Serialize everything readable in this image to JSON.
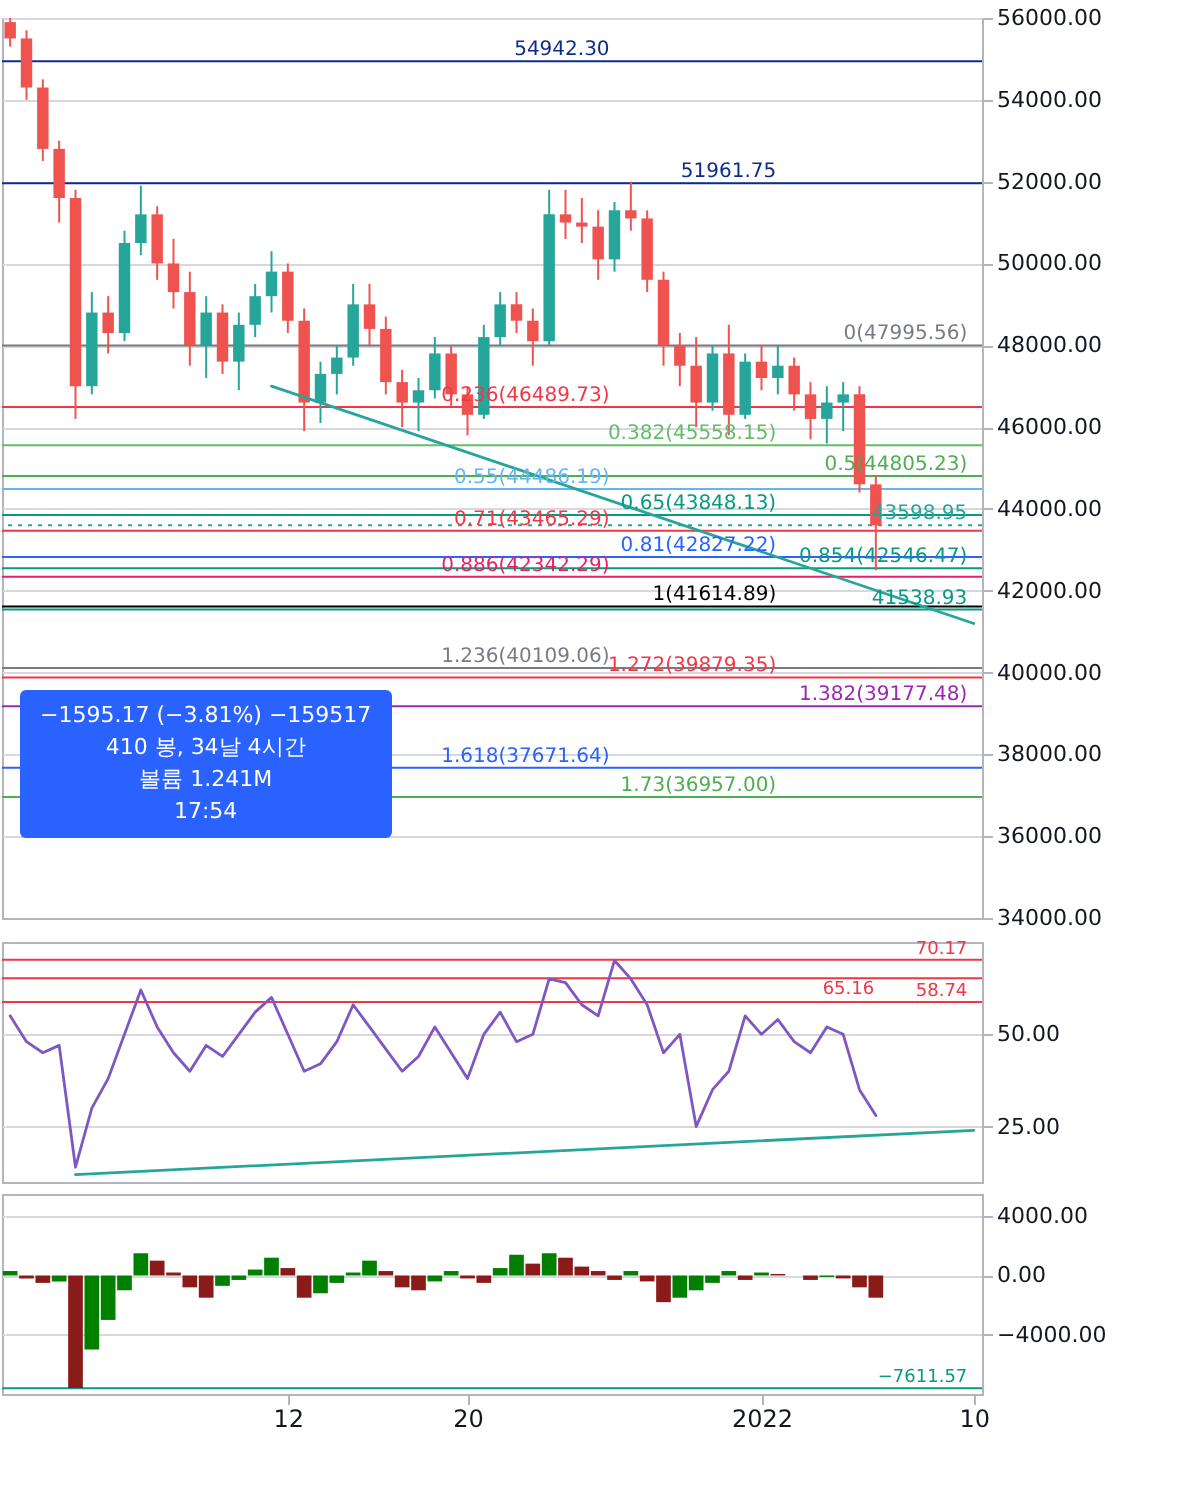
{
  "chart_data": [
    {
      "type": "candlestick",
      "grid": "y",
      "tick_labels": "y",
      "categories": [
        null,
        null,
        null,
        null,
        null,
        null,
        null,
        null,
        null,
        null,
        null,
        null,
        null,
        null,
        null,
        null,
        null,
        null,
        null,
        null,
        null,
        null,
        null,
        null,
        null,
        null,
        null,
        null,
        null,
        null,
        null,
        null,
        null,
        null,
        null,
        null,
        null,
        null,
        null,
        null,
        null,
        null,
        null,
        null,
        null,
        null,
        null,
        null,
        null,
        null,
        null,
        null,
        null,
        null,
        null,
        null,
        null,
        null,
        null,
        null
      ],
      "ohlc": [
        [
          55900,
          56000,
          55300,
          55500
        ],
        [
          55500,
          55700,
          54000,
          54300
        ],
        [
          54300,
          54500,
          52500,
          52800
        ],
        [
          52800,
          53000,
          51000,
          51600
        ],
        [
          51600,
          51800,
          46200,
          47000
        ],
        [
          47000,
          49300,
          46800,
          48800
        ],
        [
          48800,
          49200,
          47800,
          48300
        ],
        [
          48300,
          50800,
          48100,
          50500
        ],
        [
          50500,
          51900,
          50200,
          51200
        ],
        [
          51200,
          51400,
          49600,
          50000
        ],
        [
          50000,
          50600,
          48900,
          49300
        ],
        [
          49300,
          49800,
          47500,
          48000
        ],
        [
          48000,
          49200,
          47200,
          48800
        ],
        [
          48800,
          49000,
          47300,
          47600
        ],
        [
          47600,
          48800,
          46900,
          48500
        ],
        [
          48500,
          49500,
          48200,
          49200
        ],
        [
          49200,
          50300,
          48800,
          49800
        ],
        [
          49800,
          50000,
          48300,
          48600
        ],
        [
          48600,
          48900,
          45900,
          46600
        ],
        [
          46600,
          47600,
          46100,
          47300
        ],
        [
          47300,
          48000,
          46800,
          47700
        ],
        [
          47700,
          49500,
          47500,
          49000
        ],
        [
          49000,
          49500,
          48000,
          48400
        ],
        [
          48400,
          48700,
          46800,
          47100
        ],
        [
          47100,
          47400,
          46000,
          46600
        ],
        [
          46600,
          47200,
          45900,
          46900
        ],
        [
          46900,
          48200,
          46700,
          47800
        ],
        [
          47800,
          48000,
          46500,
          46800
        ],
        [
          46800,
          47000,
          45800,
          46300
        ],
        [
          46300,
          48500,
          46200,
          48200
        ],
        [
          48200,
          49300,
          48000,
          49000
        ],
        [
          49000,
          49300,
          48300,
          48600
        ],
        [
          48600,
          48900,
          47500,
          48100
        ],
        [
          48100,
          51800,
          48000,
          51200
        ],
        [
          51200,
          51800,
          50600,
          51000
        ],
        [
          51000,
          51600,
          50500,
          50900
        ],
        [
          50900,
          51300,
          49600,
          50100
        ],
        [
          50100,
          51500,
          49800,
          51300
        ],
        [
          51300,
          52000,
          50800,
          51100
        ],
        [
          51100,
          51300,
          49300,
          49600
        ],
        [
          49600,
          49800,
          47500,
          48000
        ],
        [
          48000,
          48300,
          47000,
          47500
        ],
        [
          47500,
          48200,
          46000,
          46600
        ],
        [
          46600,
          48000,
          46400,
          47800
        ],
        [
          47800,
          48500,
          45800,
          46300
        ],
        [
          46300,
          47800,
          46200,
          47600
        ],
        [
          47600,
          48000,
          46900,
          47200
        ],
        [
          47200,
          48000,
          46800,
          47500
        ],
        [
          47500,
          47700,
          46400,
          46800
        ],
        [
          46800,
          47100,
          45700,
          46200
        ],
        [
          46200,
          47000,
          45600,
          46600
        ],
        [
          46600,
          47100,
          45900,
          46800
        ],
        [
          46800,
          47000,
          44400,
          44600
        ],
        [
          44600,
          44800,
          42500,
          43598.95
        ],
        null,
        null,
        null,
        null,
        null,
        null
      ],
      "colors": [
        "#ef5350",
        "#ef5350",
        "#ef5350",
        "#ef5350",
        "#ef5350",
        "#26a69a",
        "#ef5350",
        "#26a69a",
        "#26a69a",
        "#ef5350",
        "#ef5350",
        "#ef5350",
        "#26a69a",
        "#ef5350",
        "#26a69a",
        "#26a69a",
        "#26a69a",
        "#ef5350",
        "#ef5350",
        "#26a69a",
        "#26a69a",
        "#26a69a",
        "#ef5350",
        "#ef5350",
        "#ef5350",
        "#26a69a",
        "#26a69a",
        "#ef5350",
        "#ef5350",
        "#26a69a",
        "#26a69a",
        "#ef5350",
        "#ef5350",
        "#26a69a",
        "#ef5350",
        "#ef5350",
        "#ef5350",
        "#26a69a",
        "#ef5350",
        "#ef5350",
        "#ef5350",
        "#ef5350",
        "#ef5350",
        "#26a69a",
        "#ef5350",
        "#26a69a",
        "#ef5350",
        "#26a69a",
        "#ef5350",
        "#ef5350",
        "#26a69a",
        "#26a69a",
        "#ef5350",
        "#ef5350",
        null,
        null,
        null,
        null,
        null,
        null
      ],
      "series": [
        {
          "type": "line",
          "color": "#26a69a",
          "values": [
            null,
            null,
            null,
            null,
            null,
            null,
            null,
            null,
            null,
            null,
            null,
            null,
            null,
            null,
            null,
            null,
            47000,
            null,
            null,
            null,
            null,
            null,
            null,
            null,
            null,
            null,
            null,
            null,
            null,
            null,
            null,
            null,
            null,
            null,
            null,
            null,
            null,
            null,
            null,
            null,
            null,
            null,
            null,
            null,
            null,
            null,
            null,
            null,
            null,
            null,
            null,
            null,
            null,
            null,
            null,
            null,
            null,
            null,
            null,
            41200
          ]
        }
      ],
      "ylim": [
        34000,
        56000
      ],
      "yticks": [
        {
          "value": 34000,
          "label": "34000.00"
        },
        {
          "value": 36000,
          "label": "36000.00"
        },
        {
          "value": 38000,
          "label": "38000.00"
        },
        {
          "value": 40000,
          "label": "40000.00"
        },
        {
          "value": 42000,
          "label": "42000.00"
        },
        {
          "value": 44000,
          "label": "44000.00"
        },
        {
          "value": 46000,
          "label": "46000.00"
        },
        {
          "value": 48000,
          "label": "48000.00"
        },
        {
          "value": 50000,
          "label": "50000.00"
        },
        {
          "value": 52000,
          "label": "52000.00"
        },
        {
          "value": 54000,
          "label": "54000.00"
        },
        {
          "value": 56000,
          "label": "56000.00"
        }
      ],
      "ref_lines": [
        {
          "axis": "y",
          "value": 54942.3,
          "label": "54942.30",
          "color": "#0d2c8c"
        },
        {
          "axis": "y",
          "value": 51961.75,
          "label": "51961.75",
          "color": "#0d2c8c"
        },
        {
          "axis": "y",
          "value": 47995.56,
          "label": "0(47995.56)",
          "color": "#787b86"
        },
        {
          "axis": "y",
          "value": 46489.73,
          "label": "0.236(46489.73)",
          "color": "#f23645"
        },
        {
          "axis": "y",
          "value": 45558.15,
          "label": "0.382(45558.15)",
          "color": "#66bb6a"
        },
        {
          "axis": "y",
          "value": 44805.23,
          "label": "0.5(44805.23)",
          "color": "#4caf50"
        },
        {
          "axis": "y",
          "value": 44486.19,
          "label": "0.55(44486.19)",
          "color": "#64b5f6"
        },
        {
          "axis": "y",
          "value": 43848.13,
          "label": "0.65(43848.13)",
          "color": "#089981"
        },
        {
          "axis": "y",
          "value": 43598.95,
          "label": "43598.95",
          "color": "#26a69a",
          "line_style": "dotted"
        },
        {
          "axis": "y",
          "value": 43465.29,
          "label": "0.71(43465.29)",
          "color": "#f23645"
        },
        {
          "axis": "y",
          "value": 42827.22,
          "label": "0.81(42827.22)",
          "color": "#2962ff"
        },
        {
          "axis": "y",
          "value": 42546.47,
          "label": "0.854(42546.47)",
          "color": "#089981"
        },
        {
          "axis": "y",
          "value": 42342.29,
          "label": "0.886(42342.29)",
          "color": "#e91e63"
        },
        {
          "axis": "y",
          "value": 41614.89,
          "label": "1(41614.89)",
          "color": "#000000"
        },
        {
          "axis": "y",
          "value": 41538.93,
          "label": "41538.93",
          "color": "#089981"
        },
        {
          "axis": "y",
          "value": 40109.06,
          "label": "1.236(40109.06)",
          "color": "#787b86"
        },
        {
          "axis": "y",
          "value": 39879.35,
          "label": "1.272(39879.35)",
          "color": "#f23645"
        },
        {
          "axis": "y",
          "value": 39177.48,
          "label": "1.382(39177.48)",
          "color": "#9c27b0"
        },
        {
          "axis": "y",
          "value": 37671.64,
          "label": "1.618(37671.64)",
          "color": "#2962ff"
        },
        {
          "axis": "y",
          "value": 36957.0,
          "label": "1.73(36957.00)",
          "color": "#4caf50"
        }
      ],
      "annotations": [
        "−1595.17 (−3.81%) −159517",
        "410 봉, 34날 4시간",
        "볼륨 1.241M",
        "17:54"
      ]
    },
    {
      "type": "line",
      "grid": "y",
      "tick_labels": "y",
      "categories": [
        null,
        null,
        null,
        null,
        null,
        null,
        null,
        null,
        null,
        null,
        null,
        null,
        null,
        null,
        null,
        null,
        null,
        null,
        null,
        null,
        null,
        null,
        null,
        null,
        null,
        null,
        null,
        null,
        null,
        null,
        null,
        null,
        null,
        null,
        null,
        null,
        null,
        null,
        null,
        null,
        null,
        null,
        null,
        null,
        null,
        null,
        null,
        null,
        null,
        null,
        null,
        null,
        null,
        null,
        null,
        null,
        null,
        null,
        null,
        null
      ],
      "series": [
        {
          "color": "#7e57c2",
          "values": [
            55,
            48,
            45,
            47,
            14,
            30,
            38,
            50,
            62,
            52,
            45,
            40,
            47,
            44,
            50,
            56,
            60,
            50,
            40,
            42,
            48,
            58,
            52,
            46,
            40,
            44,
            52,
            45,
            38,
            50,
            56,
            48,
            50,
            65,
            64,
            58,
            55,
            70,
            65,
            58,
            45,
            50,
            25,
            35,
            40,
            55,
            50,
            54,
            48,
            45,
            52,
            50,
            35,
            28,
            null,
            null,
            null,
            null,
            null,
            null
          ]
        },
        {
          "color": "#26a69a",
          "values": [
            null,
            null,
            null,
            null,
            12,
            null,
            null,
            null,
            null,
            null,
            null,
            null,
            null,
            null,
            null,
            null,
            null,
            null,
            null,
            null,
            null,
            null,
            null,
            null,
            null,
            null,
            null,
            null,
            null,
            null,
            null,
            null,
            null,
            null,
            null,
            null,
            null,
            null,
            null,
            null,
            null,
            null,
            null,
            null,
            null,
            null,
            null,
            null,
            null,
            null,
            null,
            null,
            null,
            null,
            null,
            null,
            null,
            null,
            null,
            24
          ]
        }
      ],
      "ylim": [
        10,
        75
      ],
      "yticks": [
        {
          "value": 25,
          "label": "25.00"
        },
        {
          "value": 50,
          "label": "50.00"
        }
      ],
      "ref_lines": [
        {
          "axis": "y",
          "value": 70.17,
          "label": "70.17",
          "color": "#f23645"
        },
        {
          "axis": "y",
          "value": 65.16,
          "label": "65.16",
          "color": "#f23645"
        },
        {
          "axis": "y",
          "value": 58.74,
          "label": "58.74",
          "color": "#f23645"
        }
      ]
    },
    {
      "type": "bar",
      "grid": "y",
      "categories": [
        null,
        null,
        null,
        null,
        null,
        null,
        null,
        null,
        null,
        null,
        null,
        null,
        null,
        null,
        null,
        null,
        null,
        "12",
        null,
        null,
        null,
        null,
        null,
        null,
        null,
        null,
        null,
        null,
        "20",
        null,
        null,
        null,
        null,
        null,
        null,
        null,
        null,
        null,
        null,
        null,
        null,
        null,
        null,
        null,
        null,
        null,
        "2022",
        null,
        null,
        null,
        null,
        null,
        null,
        null,
        null,
        null,
        null,
        null,
        null,
        "10"
      ],
      "values": [
        300,
        -200,
        -500,
        -400,
        -7600,
        -5000,
        -3000,
        -1000,
        1500,
        1000,
        200,
        -800,
        -1500,
        -700,
        -300,
        400,
        1200,
        500,
        -1500,
        -1200,
        -500,
        200,
        1000,
        300,
        -800,
        -1000,
        -400,
        300,
        -200,
        -500,
        500,
        1400,
        800,
        1500,
        1200,
        600,
        300,
        -300,
        300,
        -400,
        -1800,
        -1500,
        -1000,
        -500,
        300,
        -300,
        200,
        100,
        0,
        -300,
        -100,
        -200,
        -800,
        -1500,
        null,
        null,
        null,
        null,
        null,
        null
      ],
      "colors": [
        "#008000",
        "#8b1a1a",
        "#8b1a1a",
        "#008000",
        "#8b1a1a",
        "#008000",
        "#008000",
        "#008000",
        "#008000",
        "#8b1a1a",
        "#8b1a1a",
        "#8b1a1a",
        "#8b1a1a",
        "#008000",
        "#008000",
        "#008000",
        "#008000",
        "#8b1a1a",
        "#8b1a1a",
        "#008000",
        "#008000",
        "#008000",
        "#008000",
        "#8b1a1a",
        "#8b1a1a",
        "#8b1a1a",
        "#008000",
        "#008000",
        "#8b1a1a",
        "#8b1a1a",
        "#008000",
        "#008000",
        "#8b1a1a",
        "#008000",
        "#8b1a1a",
        "#8b1a1a",
        "#8b1a1a",
        "#8b1a1a",
        "#008000",
        "#8b1a1a",
        "#8b1a1a",
        "#008000",
        "#008000",
        "#008000",
        "#008000",
        "#8b1a1a",
        "#008000",
        "#8b1a1a",
        "#8b1a1a",
        "#8b1a1a",
        "#008000",
        "#8b1a1a",
        "#8b1a1a",
        "#8b1a1a",
        null,
        null,
        null,
        null,
        null,
        null
      ],
      "ylim": [
        -8000,
        5500
      ],
      "yticks": [
        {
          "value": 4000,
          "label": "4000.00"
        },
        {
          "value": 0,
          "label": "0.00"
        },
        {
          "value": -4000,
          "label": "−4000.00"
        }
      ],
      "ref_lines": [
        {
          "axis": "y",
          "value": -7611.57,
          "label": "−7611.57",
          "color": "#089981"
        }
      ]
    }
  ]
}
